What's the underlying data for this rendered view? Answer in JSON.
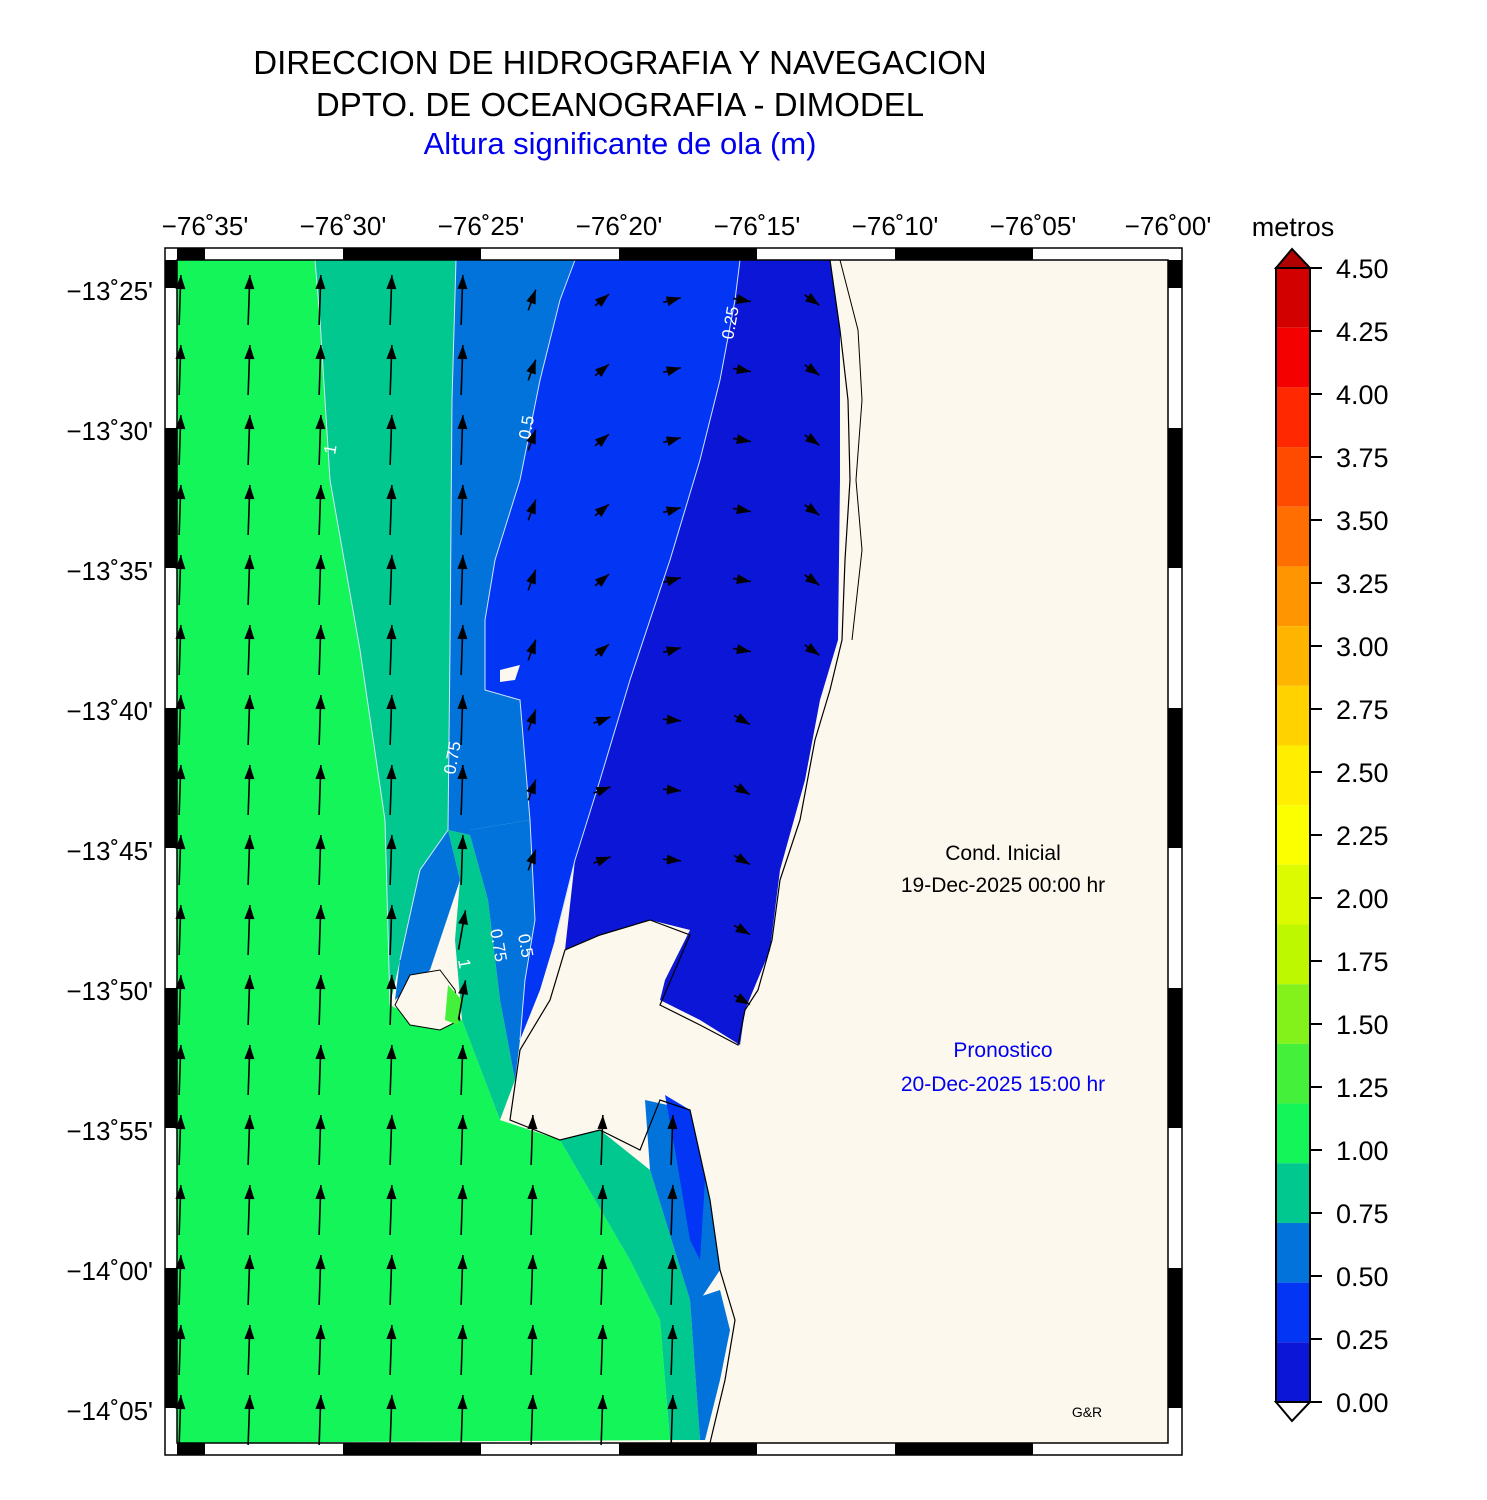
{
  "header": {
    "line1": "DIRECCION DE HIDROGRAFIA Y NAVEGACION",
    "line2": "DPTO. DE OCEANOGRAFIA - DIMODEL",
    "subtitle": "Altura significante de ola (m)"
  },
  "map": {
    "x_ticks": [
      "−76˚35'",
      "−76˚30'",
      "−76˚25'",
      "−76˚20'",
      "−76˚15'",
      "−76˚10'",
      "−76˚05'",
      "−76˚00'"
    ],
    "y_ticks": [
      "−13˚25'",
      "−13˚30'",
      "−13˚35'",
      "−13˚40'",
      "−13˚45'",
      "−13˚50'",
      "−13˚55'",
      "−14˚00'",
      "−14˚05'"
    ],
    "contour_labels": [
      "0.25",
      "0.5",
      "1",
      "0.75",
      "0.75",
      "0.5",
      "1"
    ],
    "colors": {
      "land": "#fcf8ee",
      "sea_0_25": "#0b16d6",
      "sea_25_50": "#0235f4",
      "sea_50_75": "#0173db",
      "sea_75_100": "#00c88e",
      "sea_100_125": "#14f55a",
      "sea_125_150": "#45f03b"
    }
  },
  "annotations": {
    "cond_title": "Cond. Inicial",
    "cond_date": "19-Dec-2025 00:00 hr",
    "forecast_title": "Pronostico",
    "forecast_date": "20-Dec-2025 15:00 hr",
    "credit": "G&R"
  },
  "colorbar": {
    "title": "metros",
    "labels": [
      "4.50",
      "4.25",
      "4.00",
      "3.75",
      "3.50",
      "3.25",
      "3.00",
      "2.75",
      "2.50",
      "2.25",
      "2.00",
      "1.75",
      "1.50",
      "1.25",
      "1.00",
      "0.75",
      "0.50",
      "0.25",
      "0.00"
    ],
    "colors": [
      "#b00000",
      "#d30000",
      "#f50000",
      "#ff2800",
      "#ff4b00",
      "#ff6e00",
      "#ff9500",
      "#ffb400",
      "#ffd200",
      "#ffee00",
      "#fbff00",
      "#ddfb00",
      "#bdf700",
      "#82f21a",
      "#45f03b",
      "#14f55a",
      "#00c88e",
      "#0173db",
      "#0235f4",
      "#0b16d6"
    ]
  }
}
